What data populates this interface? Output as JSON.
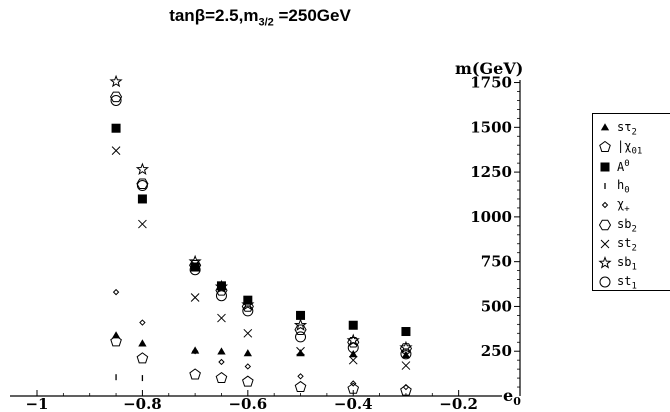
{
  "chart_data": {
    "type": "scatter",
    "title": "tanβ=2.5,m3/2 =250GeV",
    "title_parts": {
      "main": "tanβ=2.5,m",
      "sub": "3/2",
      "rest": " =250GeV"
    },
    "xlabel": "e0",
    "xlabel_parts": {
      "main": "e",
      "sub": "0"
    },
    "ylabel": "m(GeV)",
    "xlim": [
      -1.0,
      -0.15
    ],
    "ylim": [
      0,
      1820
    ],
    "xticks": [
      -1,
      -0.8,
      -0.6,
      -0.4,
      -0.2
    ],
    "xtick_labels": [
      "−1",
      "−0.8",
      "−0.6",
      "−0.4",
      "−0.2"
    ],
    "yticks": [
      250,
      500,
      750,
      1000,
      1250,
      1500,
      1750
    ],
    "ytick_labels": [
      "250",
      "500",
      "750",
      "1000",
      "1250",
      "1500",
      "1750"
    ],
    "grid": false,
    "legend_position": "right",
    "series": [
      {
        "name": "sτ2",
        "marker": "triangle",
        "x": [
          -0.85,
          -0.8,
          -0.7,
          -0.65,
          -0.6,
          -0.5,
          -0.4,
          -0.3
        ],
        "y": [
          335,
          290,
          250,
          245,
          235,
          235,
          230,
          225
        ]
      },
      {
        "name": "|χ01",
        "marker": "pentagon",
        "x": [
          -0.85,
          -0.8,
          -0.7,
          -0.65,
          -0.6,
          -0.5,
          -0.4,
          -0.3
        ],
        "y": [
          305,
          210,
          120,
          100,
          80,
          50,
          40,
          30
        ]
      },
      {
        "name": "A0",
        "marker": "square",
        "x": [
          -0.85,
          -0.8,
          -0.7,
          -0.65,
          -0.6,
          -0.5,
          -0.4,
          -0.3
        ],
        "y": [
          1495,
          1100,
          720,
          615,
          535,
          450,
          395,
          360
        ]
      },
      {
        "name": "h0",
        "marker": "tick",
        "x": [
          -0.85,
          -0.8
        ],
        "y": [
          105,
          100
        ]
      },
      {
        "name": "χ+",
        "marker": "diamond",
        "x": [
          -0.85,
          -0.8,
          -0.7,
          -0.65,
          -0.6,
          -0.5,
          -0.4,
          -0.3
        ],
        "y": [
          580,
          410,
          250,
          190,
          165,
          110,
          70,
          50
        ]
      },
      {
        "name": "sb2",
        "marker": "hexagon",
        "x": [
          -0.85,
          -0.8,
          -0.7,
          -0.65,
          -0.6,
          -0.5,
          -0.4,
          -0.3
        ],
        "y": [
          1670,
          1185,
          730,
          590,
          500,
          370,
          300,
          265
        ]
      },
      {
        "name": "st2",
        "marker": "cross",
        "x": [
          -0.85,
          -0.8,
          -0.7,
          -0.65,
          -0.6,
          -0.5,
          -0.4,
          -0.3
        ],
        "y": [
          1370,
          960,
          550,
          435,
          350,
          250,
          200,
          170
        ]
      },
      {
        "name": "sb1",
        "marker": "star",
        "x": [
          -0.85,
          -0.8,
          -0.7,
          -0.65,
          -0.6,
          -0.5,
          -0.4,
          -0.3
        ],
        "y": [
          1755,
          1265,
          750,
          610,
          510,
          395,
          310,
          270
        ]
      },
      {
        "name": "st1",
        "marker": "circle",
        "x": [
          -0.85,
          -0.8,
          -0.7,
          -0.65,
          -0.6,
          -0.5,
          -0.4,
          -0.3
        ],
        "y": [
          1650,
          1175,
          705,
          560,
          475,
          330,
          270,
          235
        ]
      }
    ],
    "legend_parts": [
      {
        "main": "sτ",
        "sub": "2"
      },
      {
        "main": "|χ",
        "sub": "01"
      },
      {
        "main": "A",
        "sup": "0"
      },
      {
        "main": "h",
        "sub": "0"
      },
      {
        "main": "χ",
        "sub": "+"
      },
      {
        "main": "sb",
        "sub": "2"
      },
      {
        "main": "st",
        "sub": "2"
      },
      {
        "main": "sb",
        "sub": "1"
      },
      {
        "main": "st",
        "sub": "1"
      }
    ]
  }
}
